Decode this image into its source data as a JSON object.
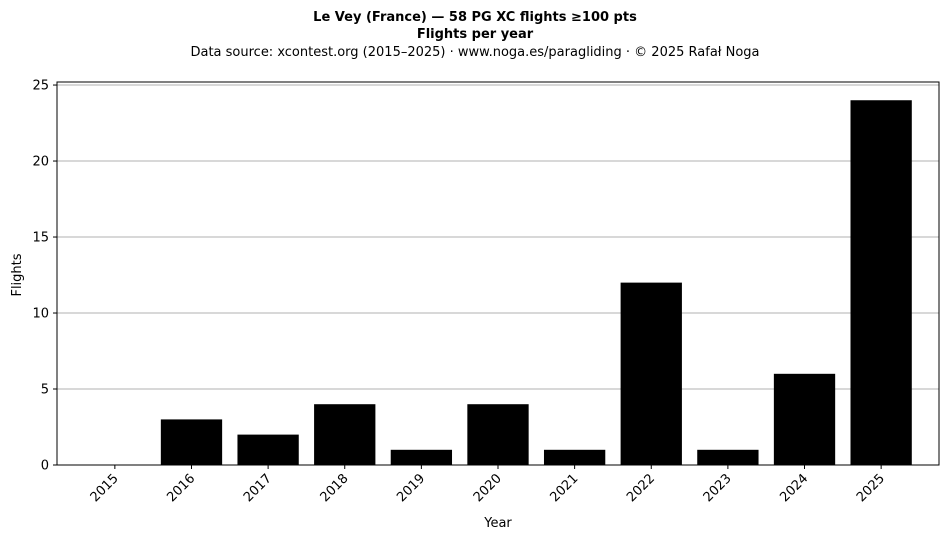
{
  "chart_data": {
    "type": "bar",
    "title": "Le Vey (France)  —  58 PG XC flights ≥100 pts",
    "title_line2": "Flights per year",
    "subtitle": "Data source: xcontest.org (2015–2025)  ·  www.noga.es/paragliding  ·  © 2025 Rafał Noga",
    "xlabel": "Year",
    "ylabel": "Flights",
    "categories": [
      "2015",
      "2016",
      "2017",
      "2018",
      "2019",
      "2020",
      "2021",
      "2022",
      "2023",
      "2024",
      "2025"
    ],
    "values": [
      0,
      3,
      2,
      4,
      1,
      4,
      1,
      12,
      1,
      6,
      24
    ],
    "ylim": [
      0,
      25.2
    ],
    "yticks": [
      0,
      5,
      10,
      15,
      20,
      25
    ],
    "grid": "horizontal",
    "bar_color": "#000000"
  }
}
